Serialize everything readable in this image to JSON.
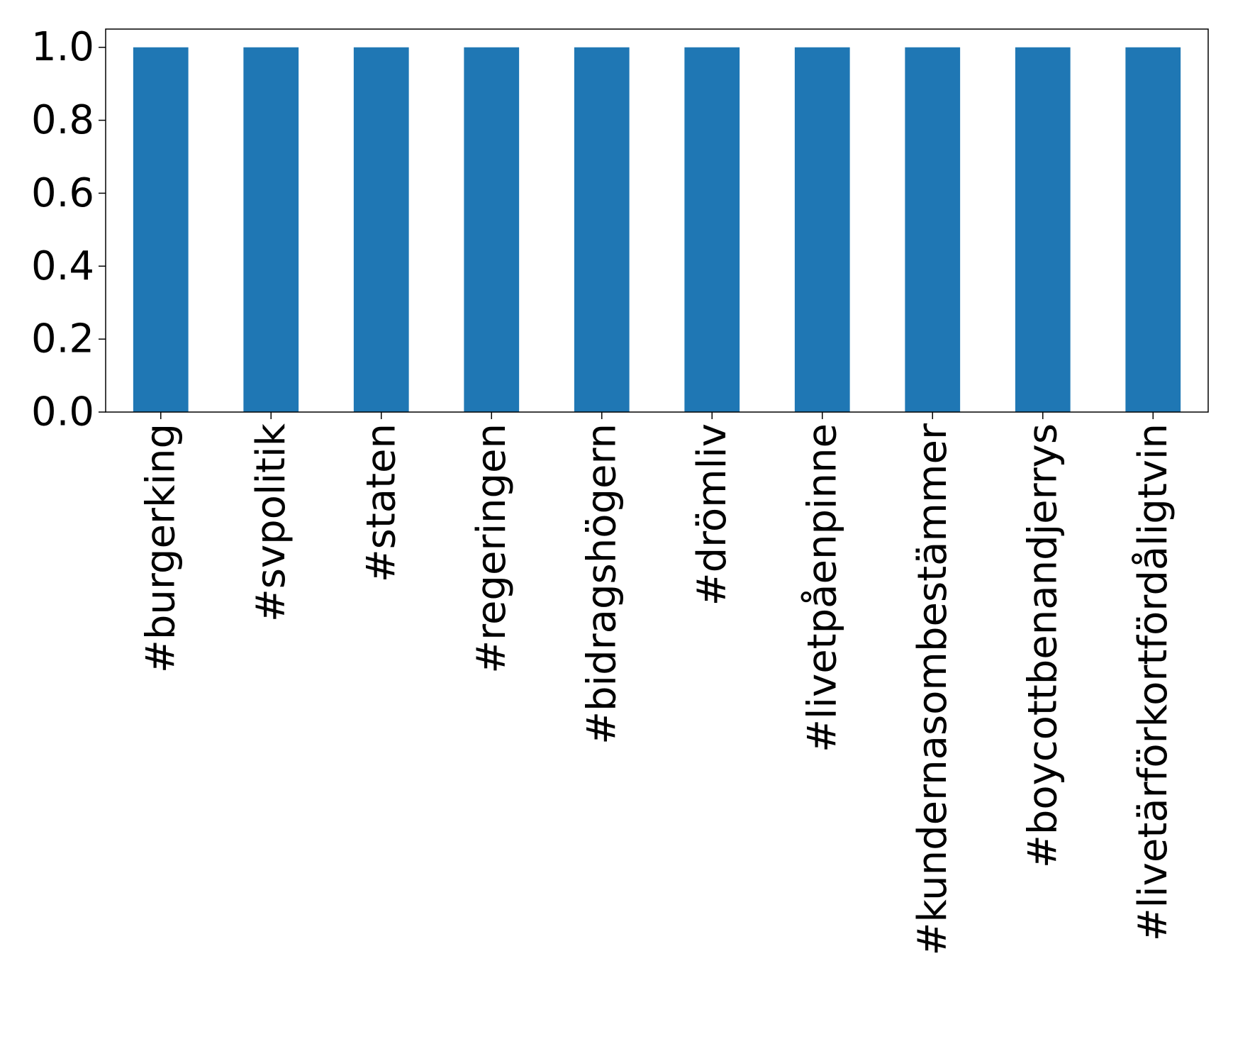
{
  "chart_data": {
    "type": "bar",
    "categories": [
      "#burgerking",
      "#svpolitik",
      "#staten",
      "#regeringen",
      "#bidragshögern",
      "#drömliv",
      "#livetpåenpinne",
      "#kundernasombestämmer",
      "#boycottbenandjerrys",
      "#livetärförkortfördåligtvin"
    ],
    "values": [
      1.0,
      1.0,
      1.0,
      1.0,
      1.0,
      1.0,
      1.0,
      1.0,
      1.0,
      1.0
    ],
    "title": "",
    "xlabel": "",
    "ylabel": "",
    "ylim": [
      0,
      1.05
    ],
    "yticks": [
      "0.0",
      "0.2",
      "0.4",
      "0.6",
      "0.8",
      "1.0"
    ],
    "grid": false,
    "legend": "none",
    "colors": {
      "bar": "#1f77b4",
      "axis": "#000000"
    }
  }
}
